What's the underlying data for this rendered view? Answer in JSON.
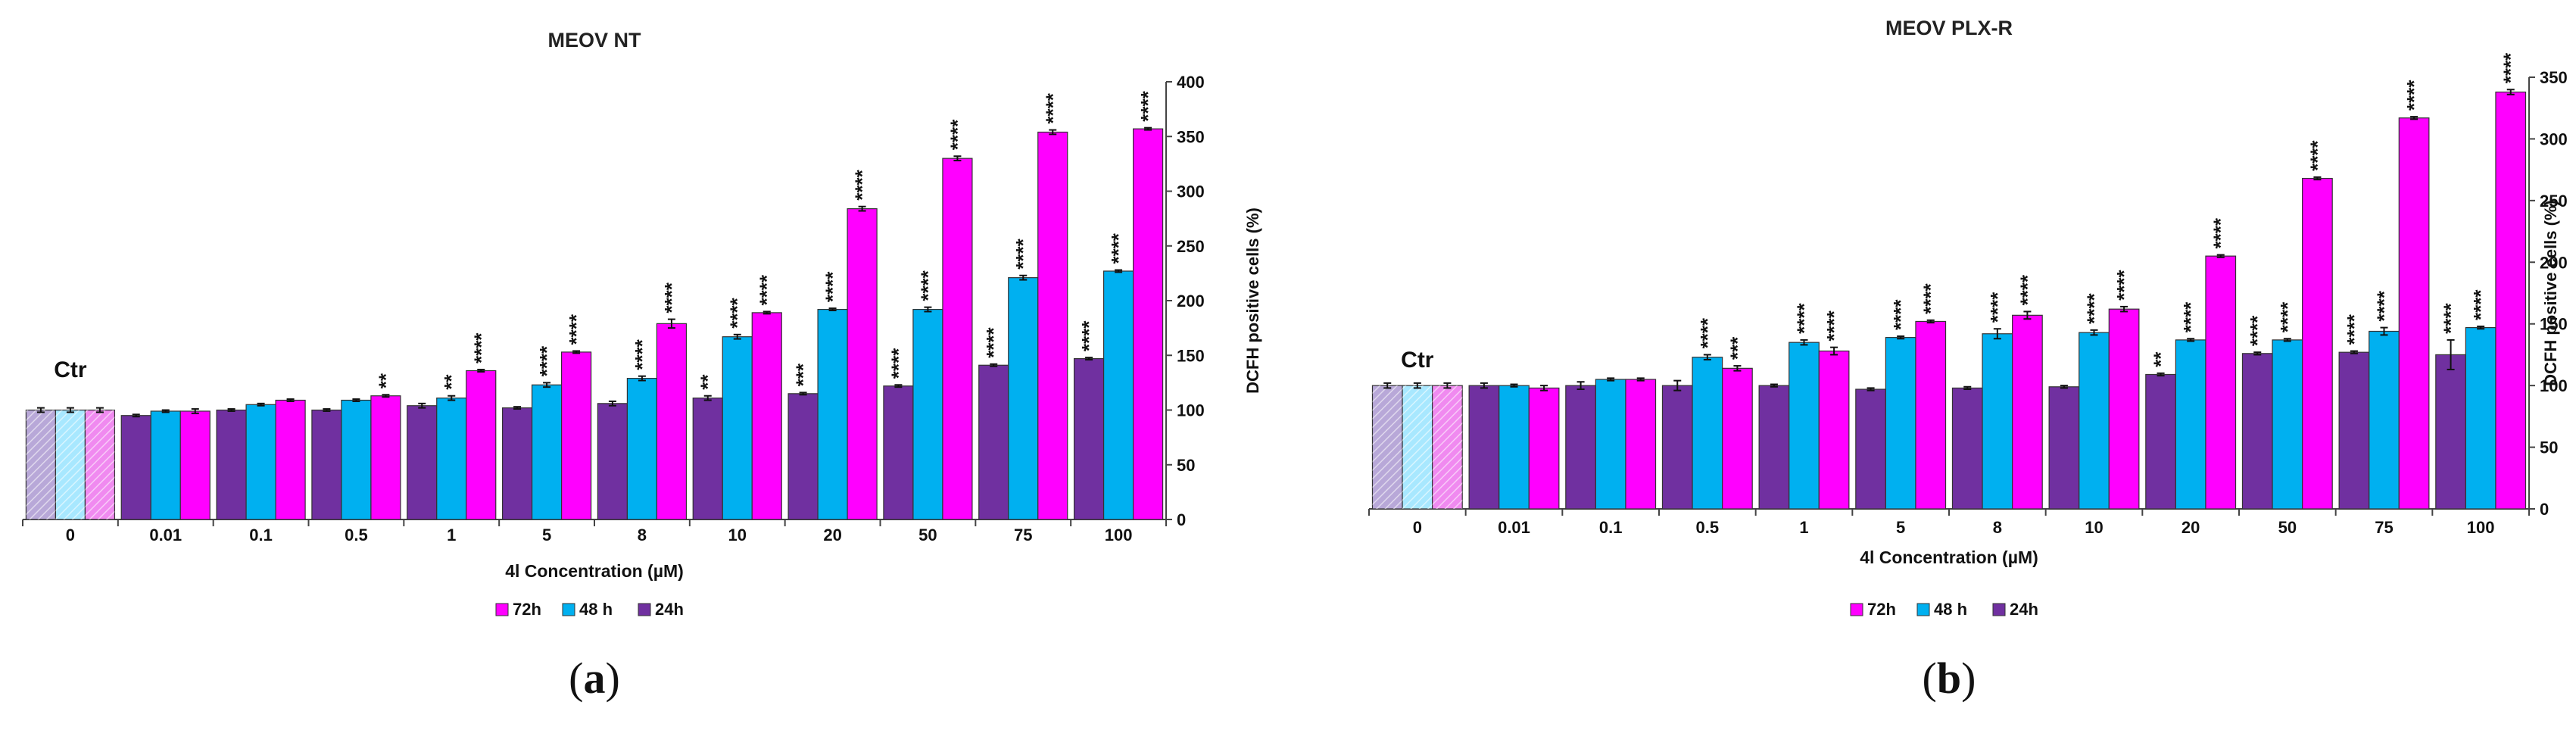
{
  "colors": {
    "h72": "#ff00ff",
    "h48": "#00b0f0",
    "h24": "#7030a0",
    "ctr72": "#f08af0",
    "ctr48": "#a8e8ff",
    "ctr24": "#b8a8d8"
  },
  "legend_labels": [
    "72h",
    "48 h",
    "24h"
  ],
  "chart_data": [
    {
      "type": "bar",
      "panel_letter": "a",
      "title": "MEOV NT",
      "xlabel": "4l Concentration (µM)",
      "ylabel": "DCFH positive cells (%)",
      "ylim": [
        0,
        400
      ],
      "yticks": [
        0,
        50,
        100,
        150,
        200,
        250,
        300,
        350,
        400
      ],
      "control_label": "Ctr",
      "categories": [
        "0",
        "0.01",
        "0.1",
        "0.5",
        "1",
        "5",
        "8",
        "10",
        "20",
        "50",
        "75",
        "100"
      ],
      "series": [
        {
          "name": "24h",
          "values": [
            100,
            95,
            100,
            100,
            104,
            102,
            106,
            111,
            115,
            122,
            141,
            147
          ],
          "errors": [
            2,
            1,
            1,
            1,
            2,
            1,
            2,
            2,
            1,
            1,
            1,
            1
          ],
          "stars": [
            "",
            "",
            "",
            "",
            "",
            "",
            "",
            "**",
            "***",
            "****",
            "****",
            "****"
          ]
        },
        {
          "name": "48 h",
          "values": [
            100,
            99,
            105,
            109,
            111,
            123,
            129,
            167,
            192,
            192,
            221,
            227
          ],
          "errors": [
            2,
            1,
            1,
            1,
            2,
            2,
            2,
            2,
            1,
            2,
            2,
            1
          ],
          "stars": [
            "",
            "",
            "",
            "",
            "**",
            "****",
            "****",
            "****",
            "****",
            "****",
            "****",
            "****"
          ]
        },
        {
          "name": "72h",
          "values": [
            100,
            99,
            109,
            113,
            136,
            153,
            179,
            189,
            284,
            330,
            354,
            357
          ],
          "errors": [
            2,
            2,
            1,
            1,
            1,
            1,
            4,
            1,
            2,
            2,
            2,
            1
          ],
          "stars": [
            "",
            "",
            "",
            "**",
            "****",
            "****",
            "****",
            "****",
            "****",
            "****",
            "****",
            "****"
          ]
        }
      ]
    },
    {
      "type": "bar",
      "panel_letter": "b",
      "title": "MEOV PLX-R",
      "xlabel": "4l Concentration (µM)",
      "ylabel": "DCFH positive cells (%)",
      "ylim": [
        0,
        350
      ],
      "yticks": [
        0,
        50,
        100,
        150,
        200,
        250,
        300,
        350
      ],
      "control_label": "Ctr",
      "categories": [
        "0",
        "0.01",
        "0.1",
        "0.5",
        "1",
        "5",
        "8",
        "10",
        "20",
        "50",
        "75",
        "100"
      ],
      "series": [
        {
          "name": "24h",
          "values": [
            100,
            100,
            100,
            100,
            100,
            97,
            98,
            99,
            109,
            126,
            127,
            125
          ],
          "errors": [
            2,
            2,
            3,
            4,
            1,
            1,
            1,
            1,
            1,
            1,
            1,
            12
          ],
          "stars": [
            "",
            "",
            "",
            "",
            "",
            "",
            "",
            "",
            "**",
            "****",
            "****",
            "****"
          ]
        },
        {
          "name": "48 h",
          "values": [
            100,
            100,
            105,
            123,
            135,
            139,
            142,
            143,
            137,
            137,
            144,
            147
          ],
          "errors": [
            2,
            1,
            1,
            2,
            2,
            1,
            4,
            2,
            1,
            1,
            3,
            1
          ],
          "stars": [
            "",
            "",
            "",
            "****",
            "****",
            "****",
            "****",
            "****",
            "****",
            "****",
            "****",
            "****"
          ]
        },
        {
          "name": "72h",
          "values": [
            100,
            98,
            105,
            114,
            128,
            152,
            157,
            162,
            205,
            268,
            317,
            338
          ],
          "errors": [
            2,
            2,
            1,
            2,
            3,
            1,
            3,
            2,
            1,
            1,
            1,
            2
          ],
          "stars": [
            "",
            "",
            "",
            "***",
            "****",
            "****",
            "****",
            "****",
            "****",
            "****",
            "****",
            "****"
          ]
        }
      ]
    }
  ]
}
